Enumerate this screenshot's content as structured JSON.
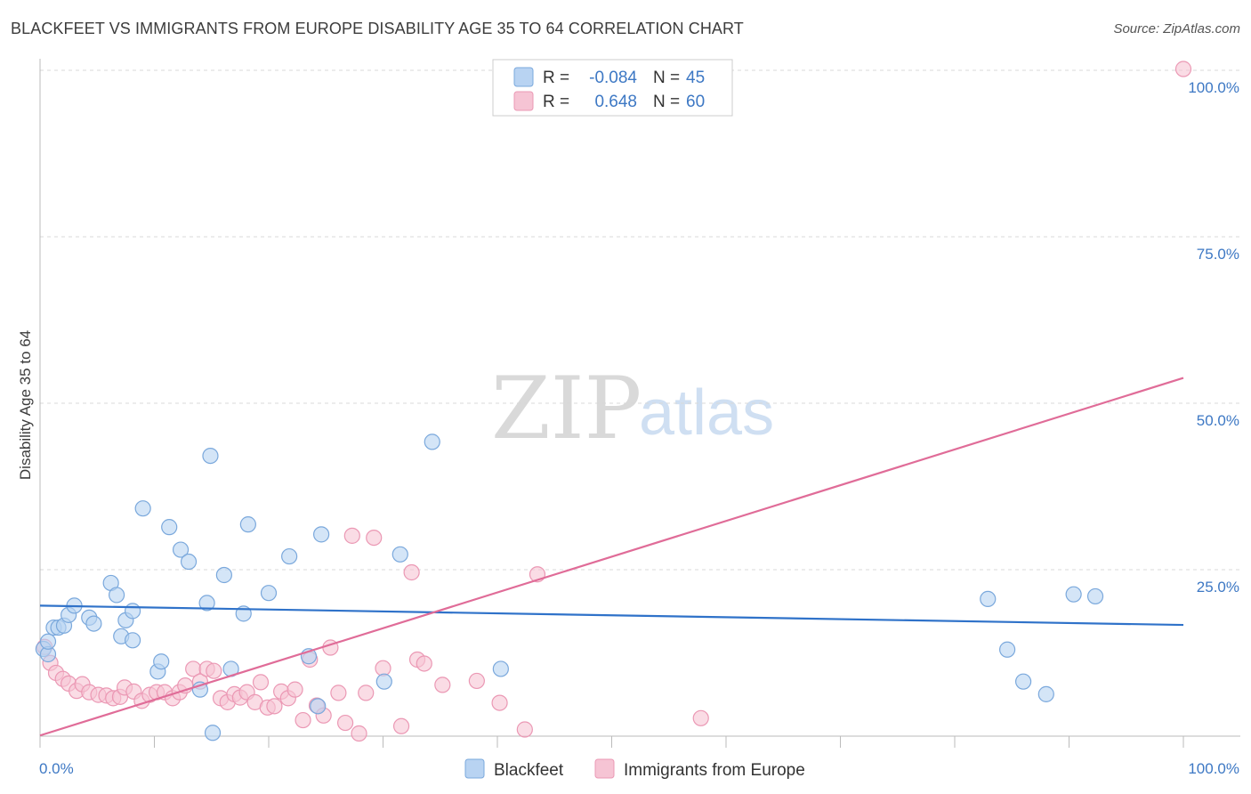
{
  "header": {
    "title": "BLACKFEET VS IMMIGRANTS FROM EUROPE DISABILITY AGE 35 TO 64 CORRELATION CHART",
    "source": "Source: ZipAtlas.com"
  },
  "watermark": {
    "zip": "ZIP",
    "atlas": "atlas"
  },
  "legend_box": {
    "rows": [
      {
        "r_label": "R =",
        "r_value": "-0.084",
        "n_label": "N =",
        "n_value": "45"
      },
      {
        "r_label": "R =",
        "r_value": "0.648",
        "n_label": "N =",
        "n_value": "60"
      }
    ]
  },
  "bottom_legend": {
    "items": [
      {
        "label": "Blackfeet"
      },
      {
        "label": "Immigrants from Europe"
      }
    ]
  },
  "colors": {
    "blue_fill": "#b8d3f2",
    "blue_stroke": "#7aa8dc",
    "blue_line": "#2f72c9",
    "pink_fill": "#f6c4d4",
    "pink_stroke": "#eb98b4",
    "pink_line": "#e06c98",
    "grid": "#d8d8d8",
    "axis": "#bbbbbb"
  },
  "chart_data": {
    "type": "scatter",
    "title": "BLACKFEET VS IMMIGRANTS FROM EUROPE DISABILITY AGE 35 TO 64 CORRELATION CHART",
    "xlabel": "",
    "ylabel": "Disability Age 35 to 64",
    "xlim": [
      0,
      100
    ],
    "ylim": [
      0,
      100
    ],
    "x_tick_labels": [
      "0.0%",
      "100.0%"
    ],
    "y_ticks": [
      25,
      50,
      75,
      100
    ],
    "y_tick_labels": [
      "25.0%",
      "50.0%",
      "75.0%",
      "100.0%"
    ],
    "grid": true,
    "legend": "top-center",
    "series": [
      {
        "name": "Blackfeet",
        "color": "blue",
        "R": -0.084,
        "N": 45,
        "trend": {
          "x": [
            0,
            100
          ],
          "y": [
            19.6,
            16.7
          ]
        },
        "points": [
          [
            0.3,
            13.1
          ],
          [
            0.7,
            12.3
          ],
          [
            0.7,
            14.2
          ],
          [
            1.2,
            16.3
          ],
          [
            1.6,
            16.3
          ],
          [
            2.1,
            16.6
          ],
          [
            2.5,
            18.2
          ],
          [
            3.0,
            19.6
          ],
          [
            4.3,
            17.8
          ],
          [
            4.7,
            16.9
          ],
          [
            6.2,
            23.0
          ],
          [
            6.7,
            21.2
          ],
          [
            7.1,
            15.0
          ],
          [
            7.5,
            17.4
          ],
          [
            8.1,
            18.8
          ],
          [
            8.1,
            14.4
          ],
          [
            9.0,
            34.2
          ],
          [
            10.3,
            9.7
          ],
          [
            10.6,
            11.2
          ],
          [
            11.3,
            31.4
          ],
          [
            12.3,
            28.0
          ],
          [
            13.0,
            26.2
          ],
          [
            14.6,
            20.0
          ],
          [
            16.1,
            24.2
          ],
          [
            16.7,
            10.1
          ],
          [
            14.0,
            7.0
          ],
          [
            15.1,
            0.5
          ],
          [
            14.9,
            42.1
          ],
          [
            17.8,
            18.4
          ],
          [
            18.2,
            31.8
          ],
          [
            20.0,
            21.5
          ],
          [
            21.8,
            27.0
          ],
          [
            23.5,
            12.0
          ],
          [
            24.3,
            4.5
          ],
          [
            24.6,
            30.3
          ],
          [
            34.3,
            44.2
          ],
          [
            30.1,
            8.2
          ],
          [
            31.5,
            27.3
          ],
          [
            40.3,
            10.1
          ],
          [
            82.9,
            20.6
          ],
          [
            84.6,
            13.0
          ],
          [
            86.0,
            8.2
          ],
          [
            88.0,
            6.3
          ],
          [
            90.4,
            21.3
          ],
          [
            92.3,
            21.0
          ]
        ]
      },
      {
        "name": "Immigrants from Europe",
        "color": "pink",
        "R": 0.648,
        "N": 60,
        "trend": {
          "x": [
            0,
            100
          ],
          "y": [
            0.1,
            53.8
          ]
        },
        "points": [
          [
            0.4,
            13.4
          ],
          [
            0.9,
            11.0
          ],
          [
            1.4,
            9.5
          ],
          [
            2.0,
            8.6
          ],
          [
            2.5,
            7.9
          ],
          [
            3.2,
            6.8
          ],
          [
            3.7,
            7.8
          ],
          [
            4.3,
            6.6
          ],
          [
            5.1,
            6.2
          ],
          [
            5.8,
            6.1
          ],
          [
            6.4,
            5.7
          ],
          [
            7.0,
            5.9
          ],
          [
            7.4,
            7.3
          ],
          [
            8.2,
            6.7
          ],
          [
            8.9,
            5.3
          ],
          [
            9.6,
            6.2
          ],
          [
            10.2,
            6.6
          ],
          [
            10.9,
            6.6
          ],
          [
            11.6,
            5.7
          ],
          [
            12.2,
            6.6
          ],
          [
            12.7,
            7.6
          ],
          [
            13.4,
            10.1
          ],
          [
            14.0,
            8.2
          ],
          [
            14.6,
            10.1
          ],
          [
            15.2,
            9.8
          ],
          [
            15.8,
            5.7
          ],
          [
            16.4,
            5.1
          ],
          [
            17.0,
            6.3
          ],
          [
            17.5,
            5.8
          ],
          [
            18.1,
            6.6
          ],
          [
            18.8,
            5.1
          ],
          [
            19.3,
            8.1
          ],
          [
            19.9,
            4.3
          ],
          [
            20.5,
            4.5
          ],
          [
            21.1,
            6.7
          ],
          [
            21.7,
            5.7
          ],
          [
            22.3,
            7.0
          ],
          [
            23.0,
            2.4
          ],
          [
            23.6,
            11.5
          ],
          [
            24.2,
            4.6
          ],
          [
            24.8,
            3.1
          ],
          [
            25.4,
            13.3
          ],
          [
            26.1,
            6.5
          ],
          [
            26.7,
            2.0
          ],
          [
            27.3,
            30.1
          ],
          [
            27.9,
            0.4
          ],
          [
            28.5,
            6.5
          ],
          [
            29.2,
            29.8
          ],
          [
            30.0,
            10.2
          ],
          [
            31.6,
            1.5
          ],
          [
            32.5,
            24.6
          ],
          [
            33.0,
            11.5
          ],
          [
            33.6,
            10.9
          ],
          [
            35.2,
            7.7
          ],
          [
            38.2,
            8.3
          ],
          [
            40.2,
            5.0
          ],
          [
            42.4,
            1.0
          ],
          [
            43.5,
            24.3
          ],
          [
            57.8,
            2.7
          ],
          [
            100.0,
            100.2
          ]
        ]
      }
    ]
  }
}
